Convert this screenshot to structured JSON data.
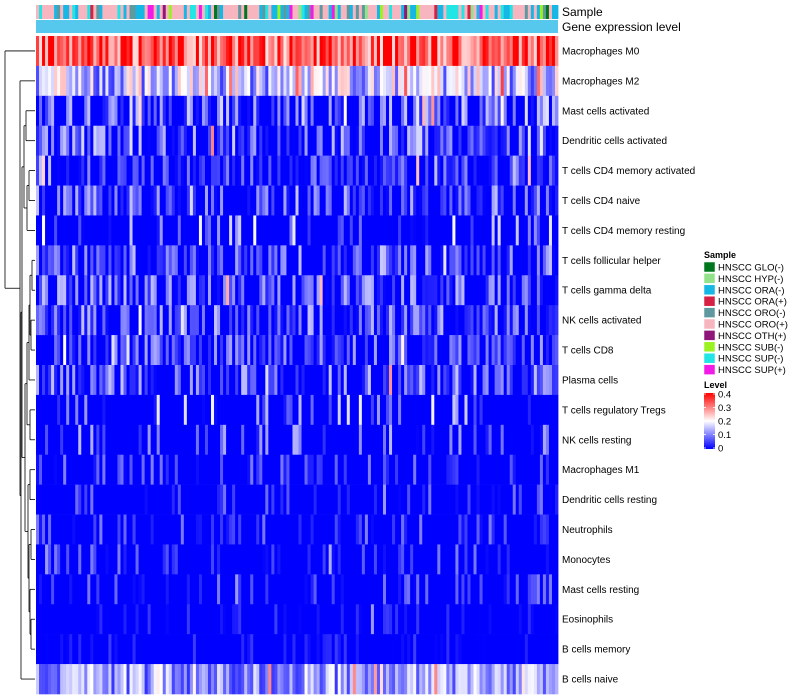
{
  "chart_data": {
    "type": "heatmap",
    "title": "",
    "annotation_rows": [
      "Sample",
      "Gene expression level"
    ],
    "rows": [
      "Macrophages M0",
      "Macrophages M2",
      "Mast cells activated",
      "Dendritic cells activated",
      "T cells CD4 memory activated",
      "T cells CD4 naive",
      "T cells CD4 memory resting",
      "T cells follicular helper",
      "T cells gamma delta",
      "NK cells activated",
      "T cells CD8",
      "Plasma cells",
      "T cells regulatory  Tregs",
      "NK cells resting",
      "Macrophages M1",
      "Dendritic cells resting",
      "Neutrophils",
      "Monocytes",
      "Mast cells resting",
      "Eosinophils",
      "B cells memory",
      "B cells naive"
    ],
    "row_mean_level": [
      0.33,
      0.15,
      0.08,
      0.08,
      0.05,
      0.07,
      0.04,
      0.06,
      0.07,
      0.07,
      0.06,
      0.07,
      0.04,
      0.03,
      0.02,
      0.02,
      0.02,
      0.02,
      0.02,
      0.01,
      0.01,
      0.12
    ],
    "n_samples": 173,
    "legend_sample": {
      "title": "Sample",
      "items": [
        {
          "label": "HNSCC GLO(-)",
          "color": "#00761f"
        },
        {
          "label": "HNSCC HYP(-)",
          "color": "#93e28b"
        },
        {
          "label": "HNSCC ORA(-)",
          "color": "#17b7e5"
        },
        {
          "label": "HNSCC ORA(+)",
          "color": "#d62044"
        },
        {
          "label": "HNSCC ORO(-)",
          "color": "#5f99a0"
        },
        {
          "label": "HNSCC ORO(+)",
          "color": "#f7b5bf"
        },
        {
          "label": "HNSCC OTH(+)",
          "color": "#8e1779"
        },
        {
          "label": "HNSCC SUB(-)",
          "color": "#9bf221"
        },
        {
          "label": "HNSCC SUP(-)",
          "color": "#22e6e6"
        },
        {
          "label": "HNSCC SUP(+)",
          "color": "#f21ae6"
        }
      ]
    },
    "legend_level": {
      "title": "Level",
      "ticks": [
        "0.4",
        "0.3",
        "0.2",
        "0.1",
        "0"
      ],
      "tick_values": [
        0.4,
        0.3,
        0.2,
        0.1,
        0
      ],
      "range": [
        0,
        0.4
      ],
      "colors": {
        "low": "#0000ff",
        "mid": "#ffffff",
        "high": "#ff0000",
        "mid_value": 0.2
      }
    },
    "gene_expression_bar_color": "#56c8ee"
  }
}
